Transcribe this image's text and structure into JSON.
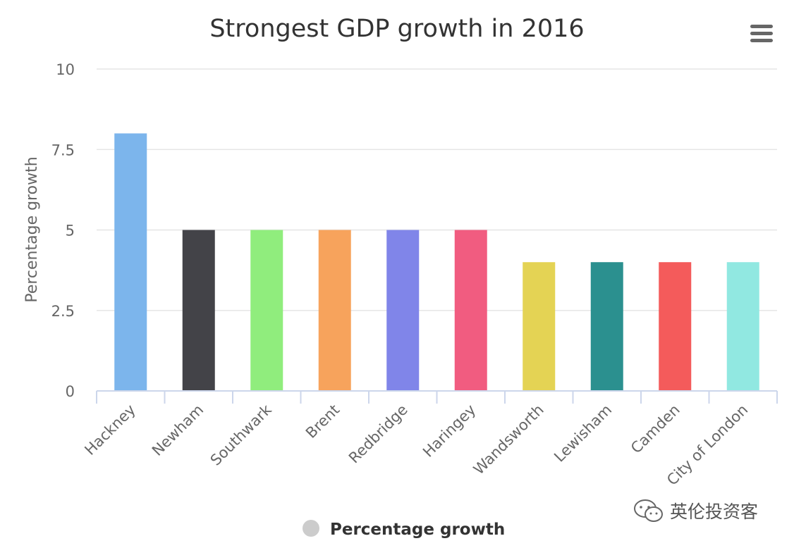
{
  "chart_data": {
    "type": "bar",
    "title": "Strongest GDP growth in 2016",
    "xlabel": "",
    "ylabel": "Percentage growth",
    "ylim": [
      0,
      10
    ],
    "yticks": [
      0,
      2.5,
      5,
      7.5,
      10
    ],
    "ytick_labels": [
      "0",
      "2.5",
      "5",
      "7.5",
      "10"
    ],
    "grid": true,
    "categories": [
      "Hackney",
      "Newham",
      "Southwark",
      "Brent",
      "Redbridge",
      "Haringey",
      "Wandsworth",
      "Lewisham",
      "Camden",
      "City of London"
    ],
    "values": [
      8,
      5,
      5,
      5,
      5,
      5,
      4,
      4,
      4,
      4
    ],
    "colors": [
      "#7cb5ec",
      "#434348",
      "#90ed7d",
      "#f7a35c",
      "#8085e9",
      "#f15c80",
      "#e4d354",
      "#2b908f",
      "#f45b5b",
      "#91e8e1"
    ],
    "legend": {
      "position": "bottom-center",
      "entries": [
        {
          "label": "Percentage growth",
          "color": "#cccccc"
        }
      ]
    }
  },
  "toolbar": {
    "menu_icon": "hamburger-menu-icon"
  },
  "watermark": {
    "text": "英伦投资客",
    "icon": "wechat-icon"
  }
}
